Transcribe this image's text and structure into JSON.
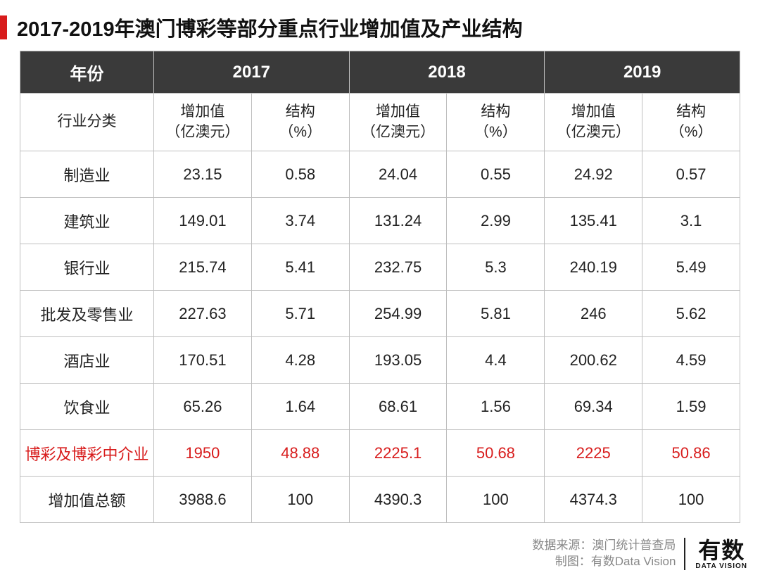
{
  "title": "2017-2019年澳门博彩等部分重点行业增加值及产业结构",
  "table": {
    "type": "table",
    "background_color": "#ffffff",
    "border_color": "#bfbfbf",
    "header_bg": "#3a3a3a",
    "header_fg": "#ffffff",
    "highlight_color": "#d81c1c",
    "accent_bar_color": "#d81c1c",
    "font_size_body": 22,
    "font_size_title": 29,
    "year_header_label": "年份",
    "years": [
      "2017",
      "2018",
      "2019"
    ],
    "category_header_label": "行业分类",
    "metric_labels": {
      "value": "增加值\n（亿澳元）",
      "share": "结构\n（%）"
    },
    "rows": [
      {
        "label": "制造业",
        "highlight": false,
        "cells": [
          "23.15",
          "0.58",
          "24.04",
          "0.55",
          "24.92",
          "0.57"
        ]
      },
      {
        "label": "建筑业",
        "highlight": false,
        "cells": [
          "149.01",
          "3.74",
          "131.24",
          "2.99",
          "135.41",
          "3.1"
        ]
      },
      {
        "label": "银行业",
        "highlight": false,
        "cells": [
          "215.74",
          "5.41",
          "232.75",
          "5.3",
          "240.19",
          "5.49"
        ]
      },
      {
        "label": "批发及零售业",
        "highlight": false,
        "cells": [
          "227.63",
          "5.71",
          "254.99",
          "5.81",
          "246",
          "5.62"
        ]
      },
      {
        "label": "酒店业",
        "highlight": false,
        "cells": [
          "170.51",
          "4.28",
          "193.05",
          "4.4",
          "200.62",
          "4.59"
        ]
      },
      {
        "label": "饮食业",
        "highlight": false,
        "cells": [
          "65.26",
          "1.64",
          "68.61",
          "1.56",
          "69.34",
          "1.59"
        ]
      },
      {
        "label": "博彩及博彩中介业",
        "highlight": true,
        "cells": [
          "1950",
          "48.88",
          "2225.1",
          "50.68",
          "2225",
          "50.86"
        ]
      },
      {
        "label": "增加值总额",
        "highlight": false,
        "cells": [
          "3988.6",
          "100",
          "4390.3",
          "100",
          "4374.3",
          "100"
        ]
      }
    ]
  },
  "footer": {
    "source_label": "数据来源：",
    "source_value": "澳门统计普查局",
    "maker_label": "制图：",
    "maker_value": "有数Data Vision",
    "logo_main": "有数",
    "logo_sub": "DATA VISION",
    "text_color": "#888888"
  }
}
